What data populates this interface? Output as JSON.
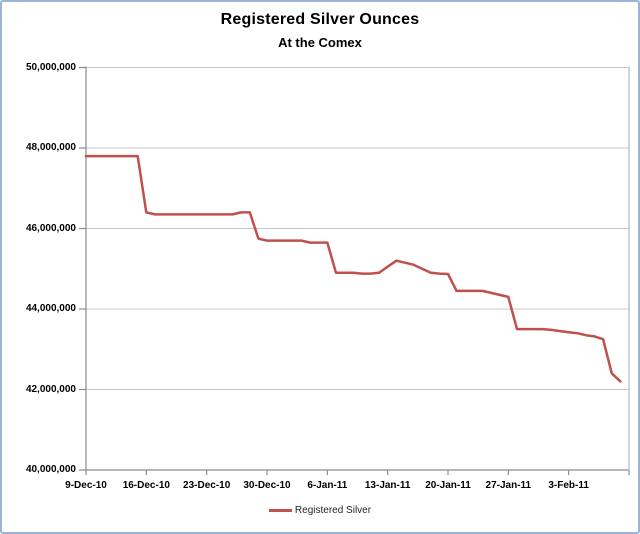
{
  "window": {
    "background": "#FFFFFF",
    "border_color": "#9BB3D8"
  },
  "chart_data": {
    "type": "line",
    "title": "Registered Silver Ounces",
    "subtitle": "At the Comex",
    "legend": {
      "label": "Registered Silver",
      "position": "bottom-center"
    },
    "series_color": "#C0504D",
    "gridline_color": "#C9C9C9",
    "axis_color": "#8C8C8C",
    "plot_right_border_color": "#A8BAD4",
    "grid": "horizontal-only",
    "ylim": [
      40000000,
      50000000
    ],
    "y_ticks": [
      {
        "value": 50000000,
        "label": "50,000,000"
      },
      {
        "value": 48000000,
        "label": "48,000,000"
      },
      {
        "value": 46000000,
        "label": "46,000,000"
      },
      {
        "value": 44000000,
        "label": "44,000,000"
      },
      {
        "value": 42000000,
        "label": "42,000,000"
      },
      {
        "value": 40000000,
        "label": "40,000,000"
      }
    ],
    "x_tick_labels": [
      "9-Dec-10",
      "16-Dec-10",
      "23-Dec-10",
      "30-Dec-10",
      "6-Jan-11",
      "13-Jan-11",
      "20-Jan-11",
      "27-Jan-11",
      "3-Feb-11"
    ],
    "x_tick_every": 7,
    "series": [
      {
        "name": "Registered Silver",
        "points": [
          {
            "date": "9-Dec-10",
            "value": 47800000
          },
          {
            "date": "10-Dec-10",
            "value": 47800000
          },
          {
            "date": "11-Dec-10",
            "value": 47800000
          },
          {
            "date": "12-Dec-10",
            "value": 47800000
          },
          {
            "date": "13-Dec-10",
            "value": 47800000
          },
          {
            "date": "14-Dec-10",
            "value": 47800000
          },
          {
            "date": "15-Dec-10",
            "value": 47800000
          },
          {
            "date": "16-Dec-10",
            "value": 46400000
          },
          {
            "date": "17-Dec-10",
            "value": 46350000
          },
          {
            "date": "18-Dec-10",
            "value": 46350000
          },
          {
            "date": "19-Dec-10",
            "value": 46350000
          },
          {
            "date": "20-Dec-10",
            "value": 46350000
          },
          {
            "date": "21-Dec-10",
            "value": 46350000
          },
          {
            "date": "22-Dec-10",
            "value": 46350000
          },
          {
            "date": "23-Dec-10",
            "value": 46350000
          },
          {
            "date": "24-Dec-10",
            "value": 46350000
          },
          {
            "date": "25-Dec-10",
            "value": 46350000
          },
          {
            "date": "26-Dec-10",
            "value": 46350000
          },
          {
            "date": "27-Dec-10",
            "value": 46400000
          },
          {
            "date": "28-Dec-10",
            "value": 46400000
          },
          {
            "date": "29-Dec-10",
            "value": 45750000
          },
          {
            "date": "30-Dec-10",
            "value": 45700000
          },
          {
            "date": "31-Dec-10",
            "value": 45700000
          },
          {
            "date": "1-Jan-11",
            "value": 45700000
          },
          {
            "date": "2-Jan-11",
            "value": 45700000
          },
          {
            "date": "3-Jan-11",
            "value": 45700000
          },
          {
            "date": "4-Jan-11",
            "value": 45650000
          },
          {
            "date": "5-Jan-11",
            "value": 45650000
          },
          {
            "date": "6-Jan-11",
            "value": 45650000
          },
          {
            "date": "7-Jan-11",
            "value": 44900000
          },
          {
            "date": "8-Jan-11",
            "value": 44900000
          },
          {
            "date": "9-Jan-11",
            "value": 44900000
          },
          {
            "date": "10-Jan-11",
            "value": 44880000
          },
          {
            "date": "11-Jan-11",
            "value": 44880000
          },
          {
            "date": "12-Jan-11",
            "value": 44900000
          },
          {
            "date": "13-Jan-11",
            "value": 45050000
          },
          {
            "date": "14-Jan-11",
            "value": 45200000
          },
          {
            "date": "15-Jan-11",
            "value": 45150000
          },
          {
            "date": "16-Jan-11",
            "value": 45100000
          },
          {
            "date": "17-Jan-11",
            "value": 45000000
          },
          {
            "date": "18-Jan-11",
            "value": 44900000
          },
          {
            "date": "19-Jan-11",
            "value": 44880000
          },
          {
            "date": "20-Jan-11",
            "value": 44870000
          },
          {
            "date": "21-Jan-11",
            "value": 44450000
          },
          {
            "date": "22-Jan-11",
            "value": 44450000
          },
          {
            "date": "23-Jan-11",
            "value": 44450000
          },
          {
            "date": "24-Jan-11",
            "value": 44450000
          },
          {
            "date": "25-Jan-11",
            "value": 44400000
          },
          {
            "date": "26-Jan-11",
            "value": 44350000
          },
          {
            "date": "27-Jan-11",
            "value": 44300000
          },
          {
            "date": "28-Jan-11",
            "value": 43500000
          },
          {
            "date": "29-Jan-11",
            "value": 43500000
          },
          {
            "date": "30-Jan-11",
            "value": 43500000
          },
          {
            "date": "31-Jan-11",
            "value": 43500000
          },
          {
            "date": "1-Feb-11",
            "value": 43480000
          },
          {
            "date": "2-Feb-11",
            "value": 43450000
          },
          {
            "date": "3-Feb-11",
            "value": 43420000
          },
          {
            "date": "4-Feb-11",
            "value": 43400000
          },
          {
            "date": "5-Feb-11",
            "value": 43350000
          },
          {
            "date": "6-Feb-11",
            "value": 43320000
          },
          {
            "date": "7-Feb-11",
            "value": 43250000
          },
          {
            "date": "8-Feb-11",
            "value": 42400000
          },
          {
            "date": "9-Feb-11",
            "value": 42200000
          }
        ]
      }
    ]
  }
}
